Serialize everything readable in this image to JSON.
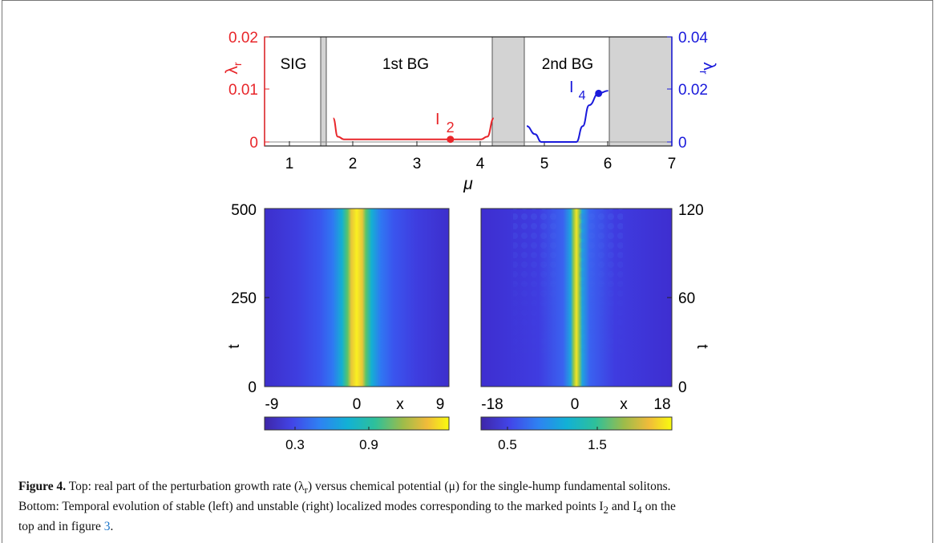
{
  "figure": {
    "top_chart": {
      "left_ticks": [
        "0.02",
        "0.01",
        "0"
      ],
      "right_ticks": [
        "0.04",
        "0.02",
        "0"
      ],
      "x_ticks": [
        "1",
        "2",
        "3",
        "4",
        "5",
        "6",
        "7"
      ],
      "y_label_left": "λ",
      "y_label_left_sub": "r",
      "y_label_right": "λ",
      "y_label_right_sub": "r",
      "x_label": "μ",
      "regions": [
        "SIG",
        "1st BG",
        "2nd BG"
      ],
      "point_i2": "I",
      "point_i2_sub": "2",
      "point_i4": "I",
      "point_i4_sub": "4",
      "colors": {
        "left": "#e8262a",
        "right": "#1a1adb",
        "gap": "#d3d3d3"
      }
    },
    "left_heatmap": {
      "y_ticks": [
        "500",
        "250",
        "0"
      ],
      "x_ticks": [
        "-9",
        "0",
        "9"
      ],
      "x_label": "x",
      "y_label": "t",
      "colorbar_ticks": [
        "0.3",
        "0.9"
      ]
    },
    "right_heatmap": {
      "y_ticks": [
        "120",
        "60",
        "0"
      ],
      "x_ticks": [
        "-18",
        "0",
        "18"
      ],
      "x_label": "x",
      "y_label": "t",
      "colorbar_ticks": [
        "0.5",
        "1.5"
      ]
    }
  },
  "caption": {
    "label": "Figure 4.",
    "line1": " Top: real part of the perturbation growth rate (λ",
    "line1_sub": "r",
    "line1_b": ") versus chemical potential (μ) for the single-hump fundamental solitons.",
    "line2": "Bottom: Temporal evolution of stable (left) and unstable (right) localized modes corresponding to the marked points I",
    "line2_sub1": "2",
    "line2_mid": " and I",
    "line2_sub2": "4",
    "line2_end": " on the",
    "line3": "top and in figure ",
    "line3_ref": "3",
    "line3_end": "."
  },
  "chart_data": [
    {
      "type": "line",
      "title": "",
      "xlabel": "μ",
      "ylabel": "λr",
      "xlim": [
        0.6,
        7
      ],
      "ylim_left": [
        0,
        0.02
      ],
      "ylim_right": [
        0,
        0.04
      ],
      "band_gaps": [
        "SIG",
        "1st BG",
        "2nd BG"
      ],
      "gray_bands": [
        [
          1.6,
          1.68
        ],
        [
          4.2,
          4.72
        ],
        [
          6.0,
          7.0
        ]
      ],
      "series": [
        {
          "axis": "left",
          "color": "#e8262a",
          "x": [
            1.68,
            1.75,
            1.85,
            2.5,
            3.0,
            3.52,
            4.0,
            4.1,
            4.2
          ],
          "y": [
            0.0045,
            0.001,
            0.0005,
            0.0005,
            0.0005,
            0.0005,
            0.0005,
            0.001,
            0.0045
          ]
        },
        {
          "axis": "right",
          "color": "#1a1adb",
          "x": [
            4.72,
            4.85,
            4.95,
            5.0,
            5.5,
            5.6,
            5.7,
            5.85,
            6.0
          ],
          "y": [
            0.006,
            0.003,
            0.0,
            0.0,
            0.0,
            0.006,
            0.014,
            0.0185,
            0.0195
          ]
        }
      ],
      "markers": [
        {
          "name": "I2",
          "x": 3.52,
          "y": 0.0005,
          "axis": "left"
        },
        {
          "name": "I4",
          "x": 5.85,
          "y": 0.0185,
          "axis": "right"
        }
      ]
    },
    {
      "type": "heatmap",
      "xlabel": "x",
      "ylabel": "t",
      "xlim": [
        -9,
        9
      ],
      "ylim": [
        0,
        500
      ],
      "colorbar_ticks": [
        0.3,
        0.9
      ]
    },
    {
      "type": "heatmap",
      "xlabel": "x",
      "ylabel": "t",
      "xlim": [
        -18,
        18
      ],
      "ylim": [
        0,
        120
      ],
      "colorbar_ticks": [
        0.5,
        1.5
      ]
    }
  ]
}
